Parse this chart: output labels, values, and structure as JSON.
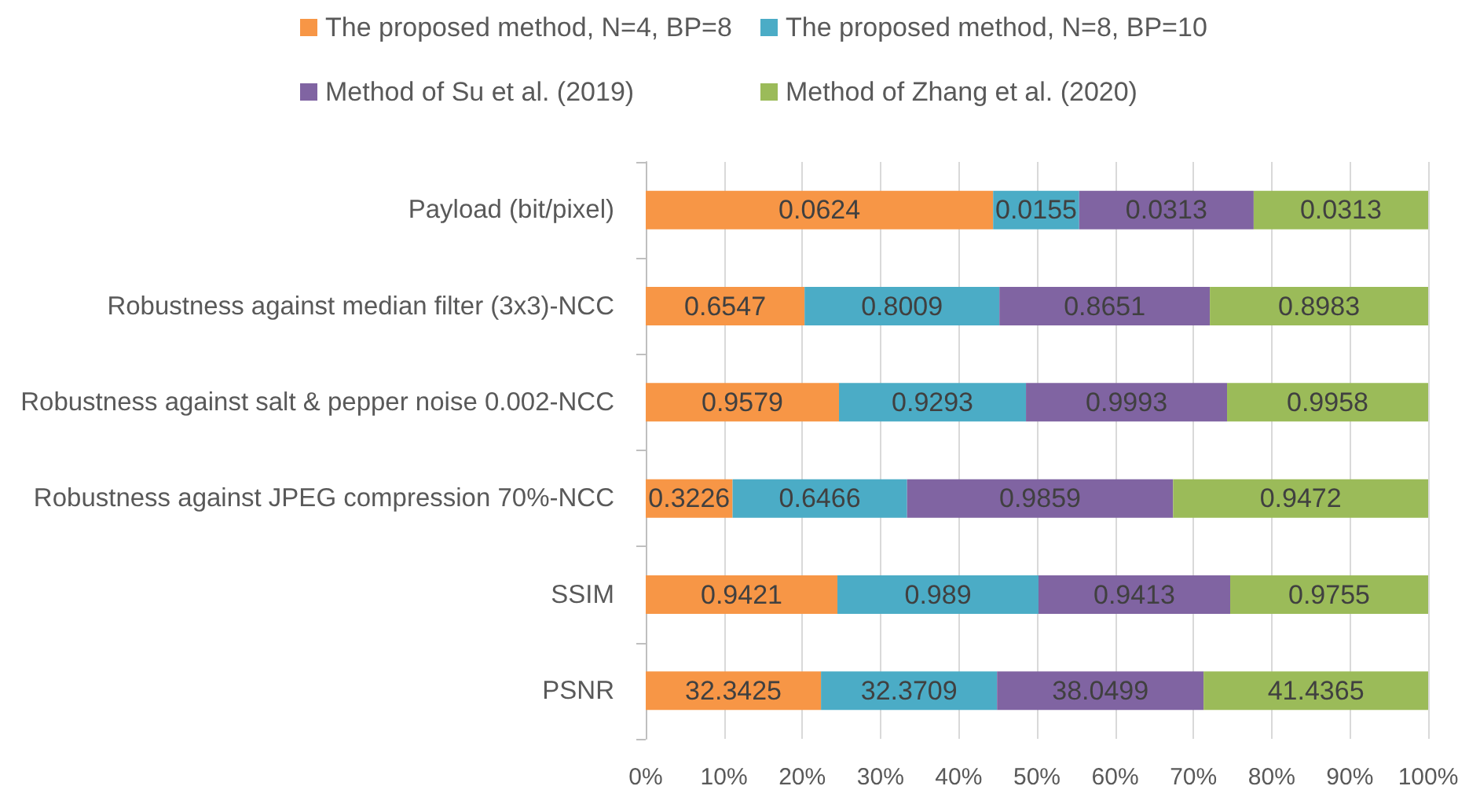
{
  "chart_data": {
    "type": "bar",
    "orientation": "horizontal",
    "stacked": true,
    "categories": [
      "Payload (bit/pixel)",
      "Robustness against median filter (3x3)-NCC",
      "Robustness against salt & pepper noise 0.002-NCC",
      "Robustness against JPEG compression 70%-NCC",
      "SSIM",
      "PSNR"
    ],
    "series": [
      {
        "name": "The proposed method, N=4, BP=8",
        "color": "#f79646",
        "values": [
          44.4,
          20.3,
          24.7,
          11.1,
          24.5,
          22.4
        ]
      },
      {
        "name": "The proposed method, N=8, BP=10",
        "color": "#4bacc6",
        "values": [
          11.0,
          24.9,
          23.9,
          22.3,
          25.7,
          22.5
        ]
      },
      {
        "name": "Method of Su et al. (2019)",
        "color": "#8064a2",
        "values": [
          22.3,
          26.9,
          25.7,
          34.0,
          24.5,
          26.4
        ]
      },
      {
        "name": "Method of Zhang et al. (2020)",
        "color": "#9bbb59",
        "values": [
          22.3,
          27.9,
          25.7,
          32.6,
          25.3,
          28.7
        ]
      }
    ],
    "annotations": [
      "0.0624",
      "0.0155",
      "0.0313",
      "0.0313",
      "0.6547",
      "0.8009",
      "0.8651",
      "0.8983",
      "0.9579",
      "0.9293",
      "0.9993",
      "0.9958",
      "0.3226",
      "0.6466",
      "0.9859",
      "0.9472",
      "0.9421",
      "0.989",
      "0.9413",
      "0.9755",
      "32.3425",
      "32.3709",
      "38.0499",
      "41.4365"
    ],
    "xlim": [
      0,
      100
    ],
    "xticks": [
      {
        "value": 0,
        "label": "0%"
      },
      {
        "value": 10,
        "label": "10%"
      },
      {
        "value": 20,
        "label": "20%"
      },
      {
        "value": 30,
        "label": "30%"
      },
      {
        "value": 40,
        "label": "40%"
      },
      {
        "value": 50,
        "label": "50%"
      },
      {
        "value": 60,
        "label": "60%"
      },
      {
        "value": 70,
        "label": "70%"
      },
      {
        "value": 80,
        "label": "80%"
      },
      {
        "value": 90,
        "label": "90%"
      },
      {
        "value": 100,
        "label": "100%"
      }
    ],
    "grid": "x",
    "legend": "top"
  }
}
